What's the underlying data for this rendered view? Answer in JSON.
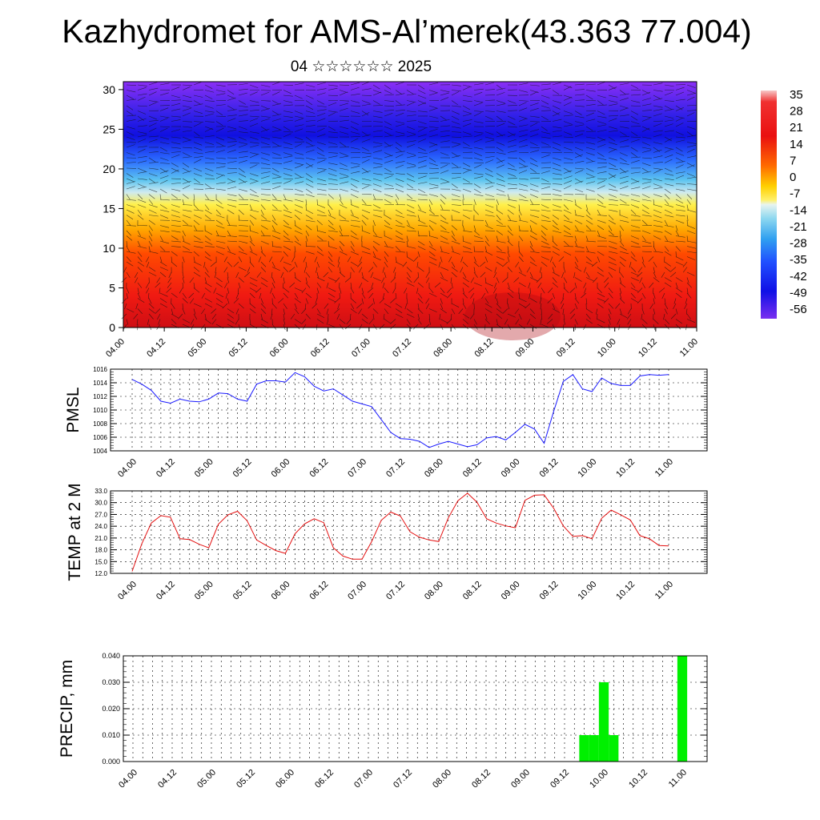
{
  "page": {
    "title": "Kazhydromet for AMS-Al’merek(43.363 77.004)",
    "subtitle": "04 ☆☆☆☆☆☆ 2025"
  },
  "chart_data": [
    {
      "type": "heatmap",
      "name": "temperature-wind-cross-section",
      "x_tick_labels": [
        "04.00",
        "04.12",
        "05.00",
        "05.12",
        "06.00",
        "06.12",
        "07.00",
        "07.12",
        "08.00",
        "08.12",
        "09.00",
        "09.12",
        "10.00",
        "10.12",
        "11.00"
      ],
      "y_ticks": [
        0,
        5,
        10,
        15,
        20,
        25,
        30
      ],
      "ylim": [
        0,
        31
      ],
      "colorbar_labels": [
        "35",
        "28",
        "21",
        "14",
        "7",
        "0",
        "-7",
        "-14",
        "-21",
        "-28",
        "-35",
        "-42",
        "-49",
        "-56"
      ],
      "colors": [
        "#f7c7c7",
        "#e8101a",
        "#ff7a00",
        "#ffb300",
        "#fff04a",
        "#bfe6f0",
        "#35a8ef",
        "#2358ff",
        "#1010e6",
        "#7a2ff0"
      ]
    },
    {
      "type": "line",
      "name": "pmsl",
      "ylabel": "PMSL",
      "ylim": [
        1004,
        1016
      ],
      "y_ticks": [
        "1004",
        "1006",
        "1008",
        "1010",
        "1012",
        "1014",
        "1016"
      ],
      "x_tick_labels": [
        "04.00",
        "04.12",
        "05.00",
        "05.12",
        "06.00",
        "06.12",
        "07.00",
        "07.12",
        "08.00",
        "08.12",
        "09.00",
        "09.12",
        "10.00",
        "10.12",
        "11.00"
      ],
      "color": "#1a1aff",
      "values": [
        1014.5,
        1013.8,
        1012.9,
        1011.3,
        1011.0,
        1011.6,
        1011.3,
        1011.2,
        1011.6,
        1012.5,
        1012.4,
        1011.6,
        1011.3,
        1013.8,
        1014.3,
        1014.3,
        1014.1,
        1015.5,
        1014.9,
        1013.5,
        1012.8,
        1013.1,
        1012.2,
        1011.3,
        1010.9,
        1010.5,
        1008.6,
        1006.7,
        1005.8,
        1005.7,
        1005.4,
        1004.5,
        1005.0,
        1005.4,
        1005.0,
        1004.6,
        1004.9,
        1005.9,
        1006.1,
        1005.6,
        1006.7,
        1007.9,
        1007.2,
        1005.1,
        1009.8,
        1014.2,
        1015.2,
        1013.1,
        1012.7,
        1014.7,
        1013.9,
        1013.6,
        1013.6,
        1015.0,
        1015.2,
        1015.1,
        1015.2
      ]
    },
    {
      "type": "line",
      "name": "temp-2m",
      "ylabel": "TEMP at 2 M",
      "ylim": [
        12,
        33
      ],
      "y_ticks": [
        "12.0",
        "15.0",
        "18.0",
        "21.0",
        "24.0",
        "27.0",
        "30.0",
        "33.0"
      ],
      "x_tick_labels": [
        "04.00",
        "04.12",
        "05.00",
        "05.12",
        "06.00",
        "06.12",
        "07.00",
        "07.12",
        "08.00",
        "08.12",
        "09.00",
        "09.12",
        "10.00",
        "10.12",
        "11.00"
      ],
      "color": "#e41010",
      "values": [
        12.5,
        19.5,
        24.8,
        26.7,
        26.3,
        20.8,
        20.6,
        19.4,
        18.5,
        24.5,
        26.9,
        27.8,
        25.4,
        20.5,
        19.1,
        17.8,
        17.1,
        22.1,
        24.6,
        25.9,
        24.9,
        18.5,
        16.4,
        15.6,
        15.6,
        20.1,
        25.5,
        27.6,
        26.6,
        22.6,
        21.2,
        20.5,
        20.1,
        26.1,
        30.5,
        32.4,
        30.1,
        25.9,
        24.8,
        24.1,
        23.6,
        30.6,
        31.9,
        32.0,
        28.6,
        24.1,
        21.4,
        21.6,
        20.8,
        26.0,
        28.1,
        26.9,
        25.6,
        21.6,
        20.8,
        19.1,
        19.0
      ]
    },
    {
      "type": "bar",
      "name": "precip",
      "ylabel": "PRECIP, mm",
      "ylim": [
        0,
        0.04
      ],
      "y_ticks": [
        "0.000",
        "0.010",
        "0.020",
        "0.030",
        "0.040"
      ],
      "x_tick_labels": [
        "04.00",
        "04.12",
        "05.00",
        "05.12",
        "06.00",
        "06.12",
        "07.00",
        "07.12",
        "08.00",
        "08.12",
        "09.00",
        "09.12",
        "10.00",
        "10.12",
        "11.00"
      ],
      "color": "#00f000",
      "values": [
        0,
        0,
        0,
        0,
        0,
        0,
        0,
        0,
        0,
        0,
        0,
        0,
        0,
        0,
        0,
        0,
        0,
        0,
        0,
        0,
        0,
        0,
        0,
        0,
        0,
        0,
        0,
        0,
        0,
        0,
        0,
        0,
        0,
        0,
        0,
        0,
        0,
        0,
        0,
        0,
        0,
        0,
        0,
        0,
        0,
        0,
        0.01,
        0.01,
        0.03,
        0.01,
        0,
        0,
        0,
        0,
        0,
        0,
        0.04
      ]
    }
  ]
}
